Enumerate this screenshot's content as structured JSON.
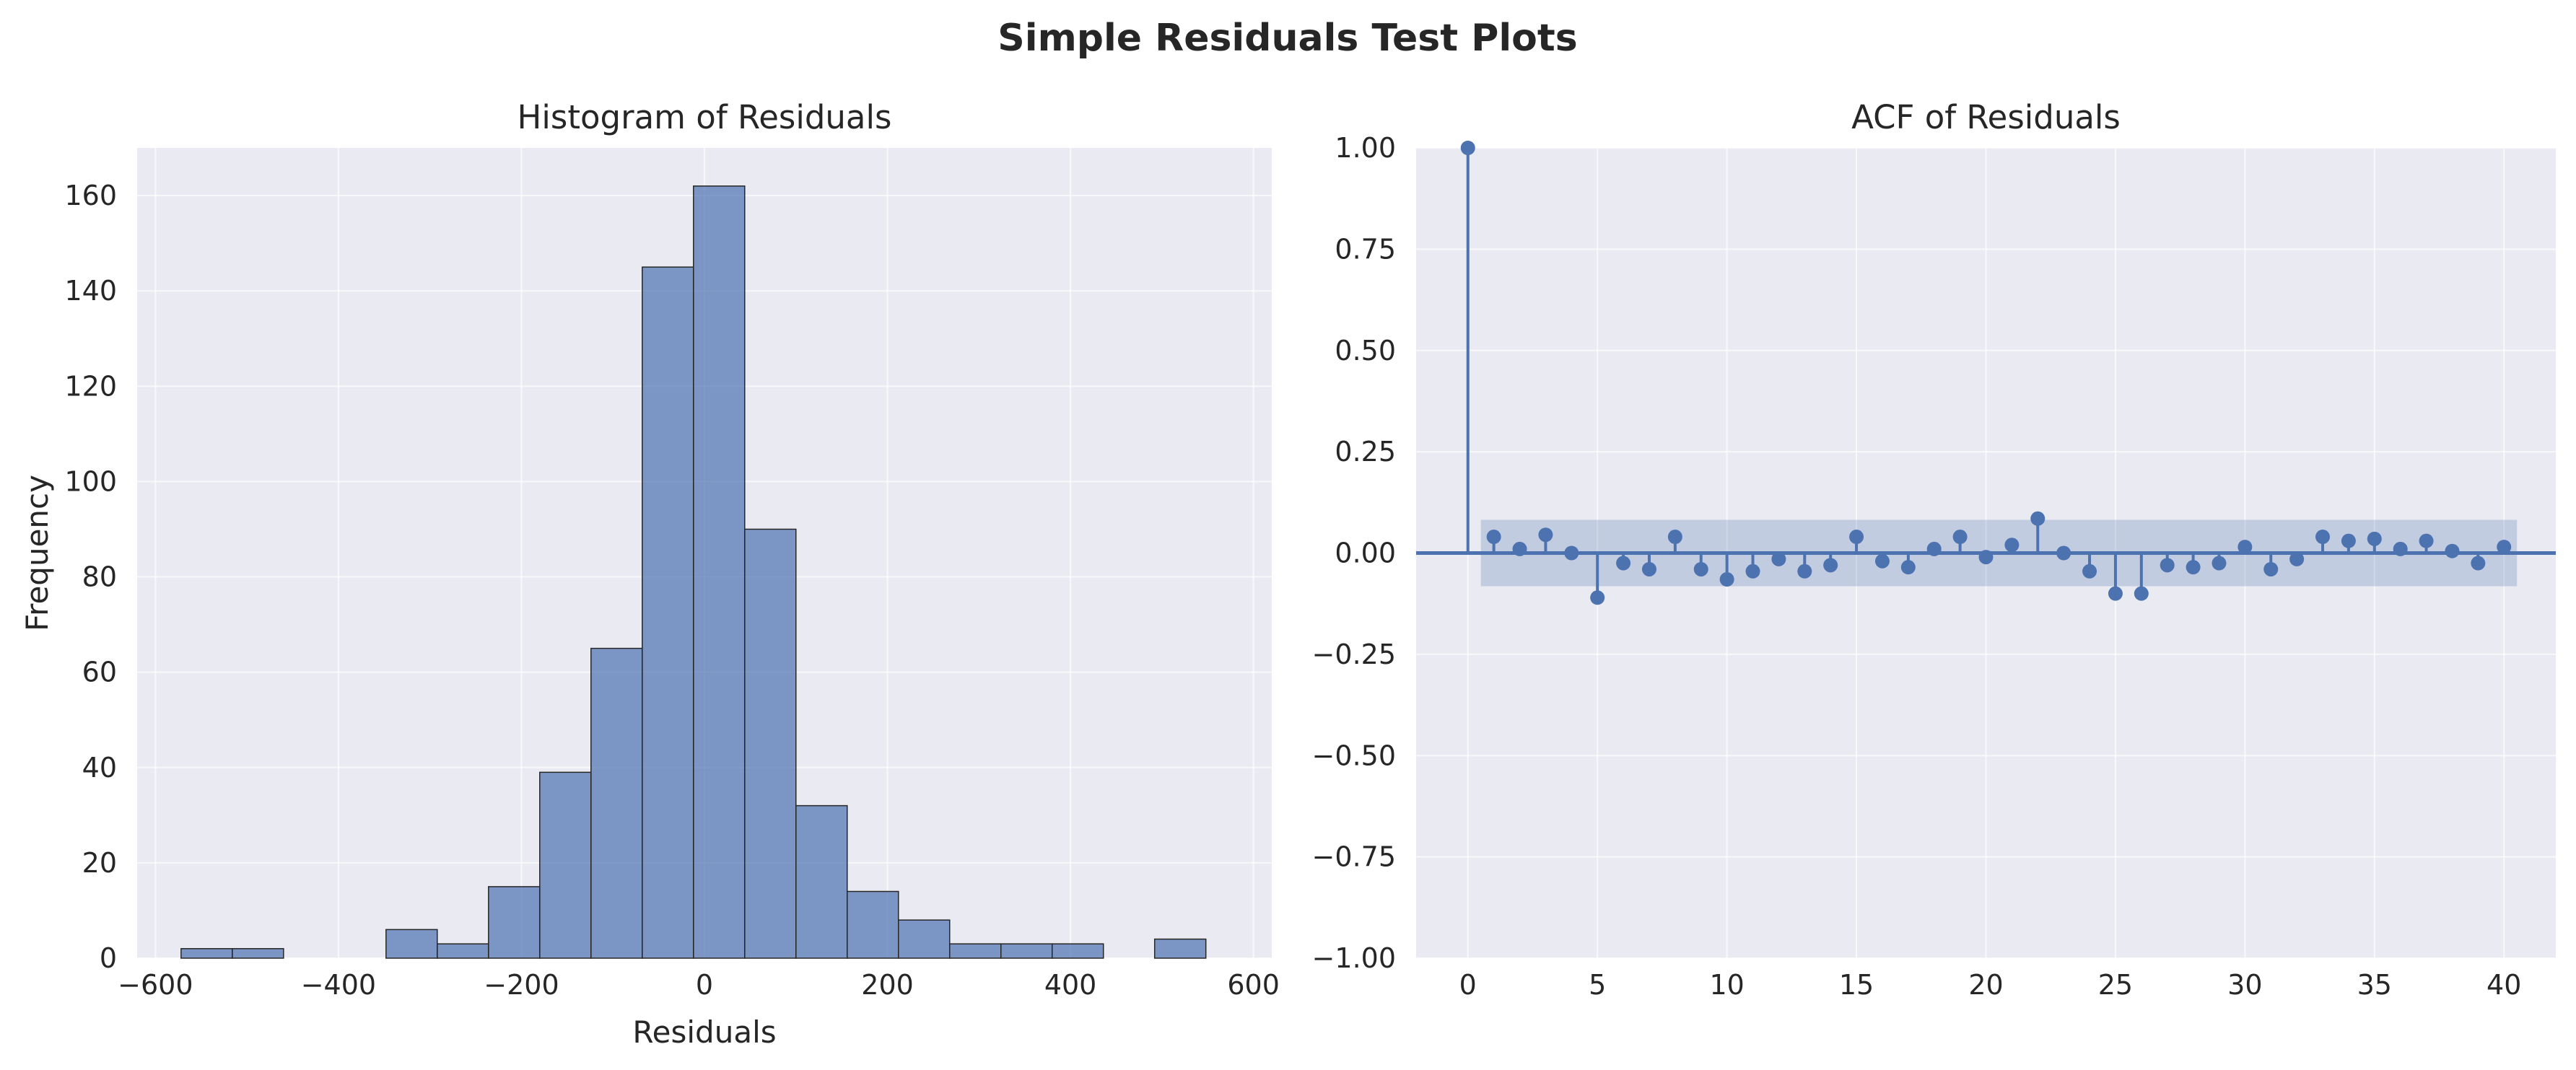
{
  "title": "Simple Residuals Test Plots",
  "chart_data": [
    {
      "type": "bar",
      "title": "Histogram of Residuals",
      "xlabel": "Residuals",
      "ylabel": "Frequency",
      "xlim": [
        -620,
        620
      ],
      "ylim": [
        0,
        170
      ],
      "xticks": [
        -600,
        -400,
        -200,
        0,
        200,
        400,
        600
      ],
      "yticks": [
        0,
        20,
        40,
        60,
        80,
        100,
        120,
        140,
        160
      ],
      "bin_edges": [
        -572,
        -516,
        -460,
        -404,
        -348,
        -292,
        -236,
        -180,
        -124,
        -68,
        -12,
        44,
        100,
        156,
        212,
        268,
        324,
        380,
        436,
        492,
        548
      ],
      "values": [
        2,
        2,
        0,
        0,
        6,
        3,
        15,
        39,
        65,
        145,
        162,
        90,
        32,
        14,
        8,
        3,
        3,
        3,
        0,
        4
      ],
      "grid": true,
      "colors": {
        "bar": "#4c72b0",
        "edge": "#262626",
        "background": "#eaeaf2"
      }
    },
    {
      "type": "scatter",
      "title": "ACF of Residuals",
      "xlabel": "",
      "ylabel": "",
      "xlim": [
        -2,
        42
      ],
      "ylim": [
        -1.0,
        1.0
      ],
      "xticks": [
        0,
        5,
        10,
        15,
        20,
        25,
        30,
        35,
        40
      ],
      "yticks": [
        1.0,
        0.75,
        0.5,
        0.25,
        0.0,
        -0.25,
        -0.5,
        -0.75,
        -1.0
      ],
      "ytick_labels": [
        "1.00",
        "0.75",
        "0.50",
        "0.25",
        "0.00",
        "−0.25",
        "−0.50",
        "−0.75",
        "−1.00"
      ],
      "lags": [
        0,
        1,
        2,
        3,
        4,
        5,
        6,
        7,
        8,
        9,
        10,
        11,
        12,
        13,
        14,
        15,
        16,
        17,
        18,
        19,
        20,
        21,
        22,
        23,
        24,
        25,
        26,
        27,
        28,
        29,
        30,
        31,
        32,
        33,
        34,
        35,
        36,
        37,
        38,
        39,
        40
      ],
      "acf": [
        1.0,
        0.04,
        0.01,
        0.045,
        0.0,
        -0.11,
        -0.025,
        -0.04,
        0.04,
        -0.04,
        -0.065,
        -0.045,
        -0.015,
        -0.045,
        -0.03,
        0.04,
        -0.02,
        -0.035,
        0.01,
        0.04,
        -0.01,
        0.02,
        0.085,
        0.0,
        -0.045,
        -0.1,
        -0.1,
        -0.03,
        -0.035,
        -0.025,
        0.015,
        -0.04,
        -0.015,
        0.04,
        0.03,
        0.035,
        0.01,
        0.03,
        0.005,
        -0.025,
        0.015
      ],
      "confidence_band": 0.082,
      "grid": true,
      "colors": {
        "stem": "#4c72b0",
        "band": "#4c72b0",
        "background": "#eaeaf2"
      }
    }
  ]
}
